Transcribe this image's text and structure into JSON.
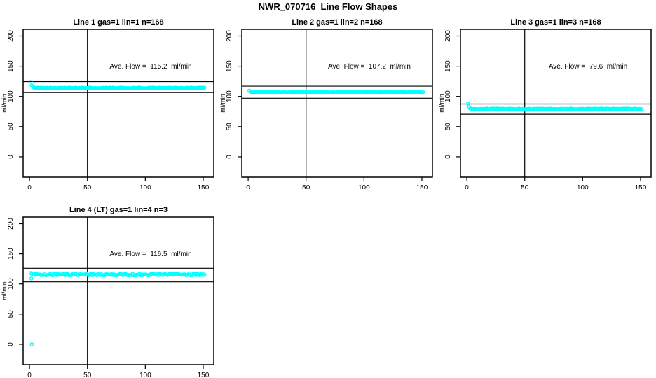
{
  "window": {
    "title": "NWR_070716  Line Flow Shapes"
  },
  "colors": {
    "background": "#FFFFFF",
    "data_points": "#00FFFF",
    "axis_and_ref_lines": "#000000",
    "text": "#000000"
  },
  "axes": {
    "x_ticks": [
      0,
      50,
      100,
      150
    ],
    "y_ticks": [
      0,
      50,
      100,
      150,
      200
    ],
    "x_range": [
      -5.5,
      159.1
    ],
    "y_range": [
      -33.7,
      211
    ],
    "ylabel": "ml/min",
    "vline_x": 50,
    "grid": "off"
  },
  "chart_data": [
    {
      "type": "scatter",
      "title": "Line 1 gas=1 lin=1 n=168",
      "annotation": "Ave. Flow =  115.2  ml/min",
      "ave_flow_ml_min": 115.2,
      "n": 168,
      "y_units": "ml/min",
      "ref_line_upper": 124.5,
      "ref_line_lower": 106.5,
      "series_profile": {
        "x_start": 1,
        "x_end": 151,
        "start_value": 125,
        "settle_value": 114,
        "settle_tau": 1.1,
        "noise": 0.6
      },
      "outliers": []
    },
    {
      "type": "scatter",
      "title": "Line 2 gas=1 lin=2 n=168",
      "annotation": "Ave. Flow =  107.2  ml/min",
      "ave_flow_ml_min": 107.2,
      "n": 168,
      "y_units": "ml/min",
      "ref_line_upper": 117,
      "ref_line_lower": 97,
      "series_profile": {
        "x_start": 1,
        "x_end": 151,
        "start_value": 109.5,
        "settle_value": 107,
        "settle_tau": 0.8,
        "noise": 0.6
      },
      "outliers": []
    },
    {
      "type": "scatter",
      "title": "Line 3 gas=1 lin=3 n=168",
      "annotation": "Ave. Flow =  79.6  ml/min",
      "ave_flow_ml_min": 79.6,
      "n": 168,
      "y_units": "ml/min",
      "ref_line_upper": 87.5,
      "ref_line_lower": 70.5,
      "series_profile": {
        "x_start": 1,
        "x_end": 151,
        "start_value": 88,
        "settle_value": 79.3,
        "settle_tau": 1.0,
        "noise": 0.6
      },
      "outliers": []
    },
    {
      "type": "scatter",
      "title": "Line 4 (LT) gas=1 lin=4 n=3",
      "annotation": "Ave. Flow =  116.5  ml/min",
      "ave_flow_ml_min": 116.5,
      "n": 3,
      "y_units": "ml/min",
      "ref_line_upper": 126,
      "ref_line_lower": 103.5,
      "series_profile": {
        "x_start": 1,
        "x_end": 151,
        "start_value": 117,
        "settle_value": 115.7,
        "settle_tau": 1.0,
        "noise": 1.4
      },
      "outliers": [
        {
          "x": 1.5,
          "y": 109
        },
        {
          "x": 2,
          "y": 0
        }
      ]
    }
  ]
}
